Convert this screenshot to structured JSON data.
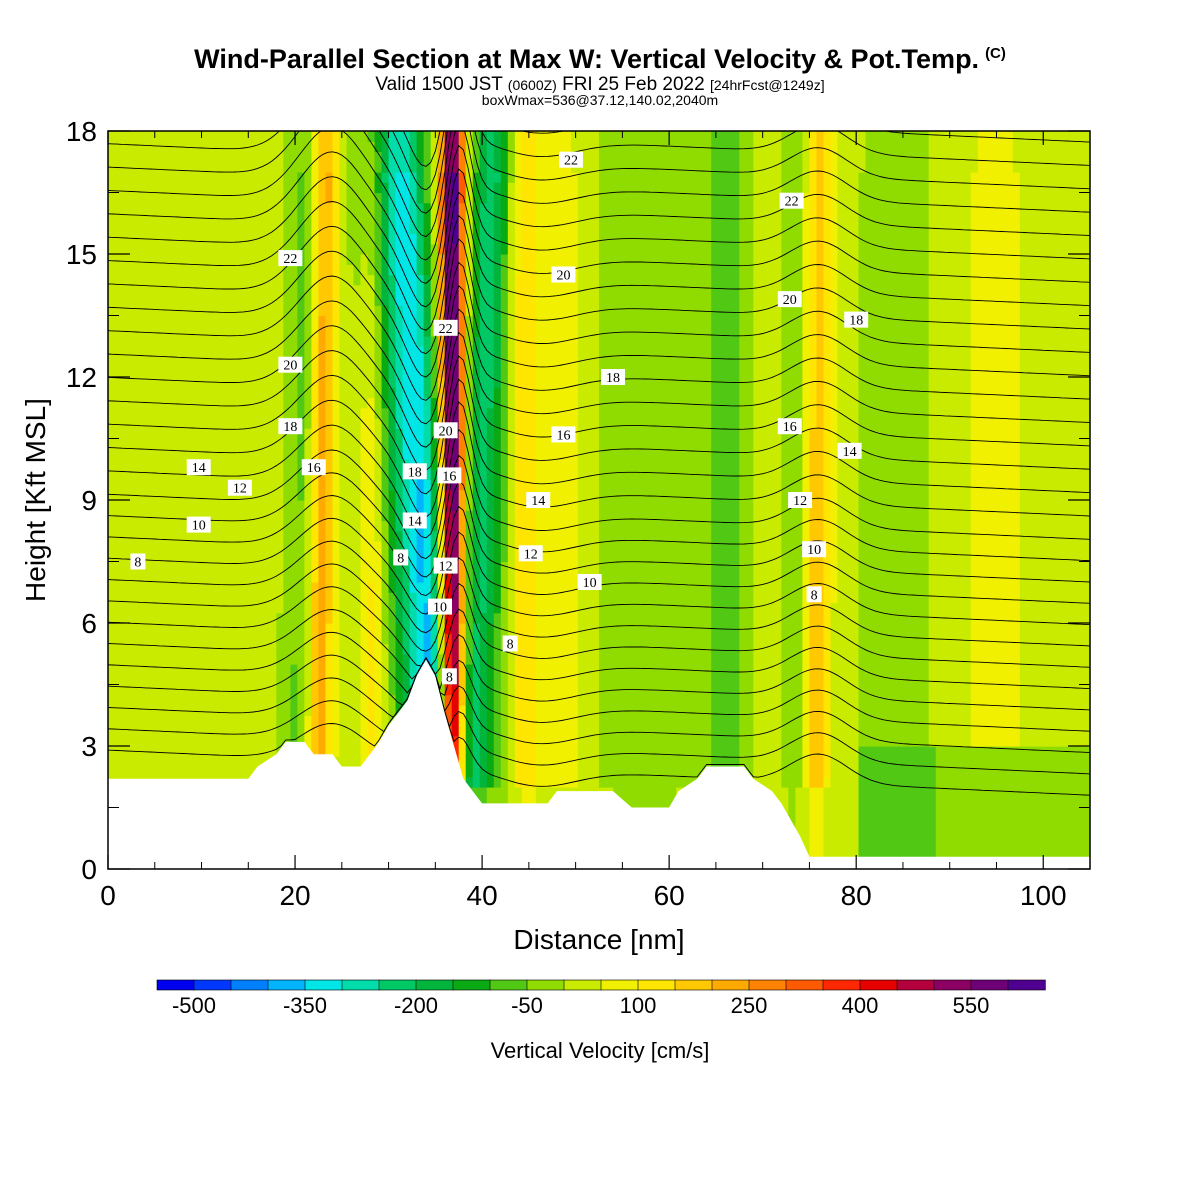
{
  "header": {
    "title": "Wind-Parallel Section at Max W: Vertical Velocity & Pot.Temp.",
    "copyright": "(C)",
    "valid_prefix": "Valid 1500 JST",
    "valid_zulu": "(0600Z)",
    "valid_date": "FRI 25 Feb 2022",
    "forecast": "[24hrFcst@1249z]",
    "box_info": "boxWmax=536@37.12,140.02,2040m"
  },
  "chart_data": {
    "type": "heatmap",
    "title": "Wind-Parallel Section at Max W: Vertical Velocity & Pot.Temp.",
    "xlabel": "Distance [nm]",
    "ylabel": "Height [Kft MSL]",
    "xlim": [
      0,
      105
    ],
    "ylim": [
      0,
      18
    ],
    "x_ticks": [
      0,
      20,
      40,
      60,
      80,
      100
    ],
    "y_ticks": [
      0,
      3,
      6,
      9,
      12,
      15,
      18
    ],
    "colorbar": {
      "label": "Vertical Velocity [cm/s]",
      "min": -550,
      "max": 650,
      "step": 50,
      "tick_labels": [
        "-500",
        "-350",
        "-200",
        "-50",
        "100",
        "250",
        "400",
        "550"
      ],
      "tick_values": [
        -500,
        -350,
        -200,
        -50,
        100,
        250,
        400,
        550
      ],
      "colors": [
        "#0000ee",
        "#0038ff",
        "#0080ff",
        "#00b4ff",
        "#00e6e6",
        "#00dcaa",
        "#00c864",
        "#00b43c",
        "#0aaa14",
        "#50c814",
        "#90dc00",
        "#c8eb00",
        "#f0f000",
        "#ffe600",
        "#ffc800",
        "#ffaa00",
        "#ff8200",
        "#ff5a00",
        "#ff2800",
        "#e60000",
        "#b4003c",
        "#8c0064",
        "#6e0078",
        "#500090"
      ]
    },
    "terrain_kft": [
      [
        0,
        2.2
      ],
      [
        15,
        2.2
      ],
      [
        16,
        2.5
      ],
      [
        18,
        2.8
      ],
      [
        19,
        3.1
      ],
      [
        21,
        3.1
      ],
      [
        22,
        2.8
      ],
      [
        24,
        2.8
      ],
      [
        25,
        2.5
      ],
      [
        27,
        2.5
      ],
      [
        28,
        2.8
      ],
      [
        29,
        3.1
      ],
      [
        30,
        3.5
      ],
      [
        31,
        3.8
      ],
      [
        32,
        4.1
      ],
      [
        33,
        4.7
      ],
      [
        34,
        5.1
      ],
      [
        35,
        4.7
      ],
      [
        36,
        3.8
      ],
      [
        37,
        3.0
      ],
      [
        38,
        2.2
      ],
      [
        39,
        1.9
      ],
      [
        40,
        1.6
      ],
      [
        47,
        1.6
      ],
      [
        48,
        1.9
      ],
      [
        54,
        1.9
      ],
      [
        56,
        1.5
      ],
      [
        60,
        1.5
      ],
      [
        61,
        1.9
      ],
      [
        63,
        2.2
      ],
      [
        64,
        2.5
      ],
      [
        68,
        2.5
      ],
      [
        69,
        2.2
      ],
      [
        71,
        1.9
      ],
      [
        72,
        1.6
      ],
      [
        73,
        1.2
      ],
      [
        74,
        0.8
      ],
      [
        75,
        0.3
      ],
      [
        105,
        0.3
      ]
    ],
    "potential_temp_labels": [
      {
        "text": "22",
        "x": 19.5,
        "y": 14.9
      },
      {
        "text": "20",
        "x": 19.5,
        "y": 12.3
      },
      {
        "text": "18",
        "x": 19.5,
        "y": 10.8
      },
      {
        "text": "16",
        "x": 22.0,
        "y": 9.8
      },
      {
        "text": "14",
        "x": 9.7,
        "y": 9.8
      },
      {
        "text": "12",
        "x": 14.1,
        "y": 9.3
      },
      {
        "text": "10",
        "x": 9.7,
        "y": 8.4
      },
      {
        "text": "8",
        "x": 3.2,
        "y": 7.5
      },
      {
        "text": "22",
        "x": 36.1,
        "y": 13.2
      },
      {
        "text": "20",
        "x": 36.1,
        "y": 10.7
      },
      {
        "text": "18",
        "x": 32.8,
        "y": 9.7
      },
      {
        "text": "16",
        "x": 36.5,
        "y": 9.6
      },
      {
        "text": "14",
        "x": 32.8,
        "y": 8.5
      },
      {
        "text": "8",
        "x": 31.3,
        "y": 7.6
      },
      {
        "text": "12",
        "x": 36.1,
        "y": 7.4
      },
      {
        "text": "10",
        "x": 35.5,
        "y": 6.4
      },
      {
        "text": "8",
        "x": 36.5,
        "y": 4.7
      },
      {
        "text": "8",
        "x": 43.0,
        "y": 5.5
      },
      {
        "text": "22",
        "x": 49.5,
        "y": 17.3
      },
      {
        "text": "20",
        "x": 48.7,
        "y": 14.5
      },
      {
        "text": "18",
        "x": 54.0,
        "y": 12.0
      },
      {
        "text": "16",
        "x": 48.7,
        "y": 10.6
      },
      {
        "text": "14",
        "x": 46.0,
        "y": 9.0
      },
      {
        "text": "12",
        "x": 45.2,
        "y": 7.7
      },
      {
        "text": "10",
        "x": 51.5,
        "y": 7.0
      },
      {
        "text": "22",
        "x": 73.1,
        "y": 16.3
      },
      {
        "text": "20",
        "x": 72.9,
        "y": 13.9
      },
      {
        "text": "18",
        "x": 80.0,
        "y": 13.4
      },
      {
        "text": "16",
        "x": 72.9,
        "y": 10.8
      },
      {
        "text": "14",
        "x": 79.3,
        "y": 10.2
      },
      {
        "text": "12",
        "x": 74.0,
        "y": 9.0
      },
      {
        "text": "10",
        "x": 75.5,
        "y": 7.8
      },
      {
        "text": "8",
        "x": 75.5,
        "y": 6.7
      }
    ]
  }
}
